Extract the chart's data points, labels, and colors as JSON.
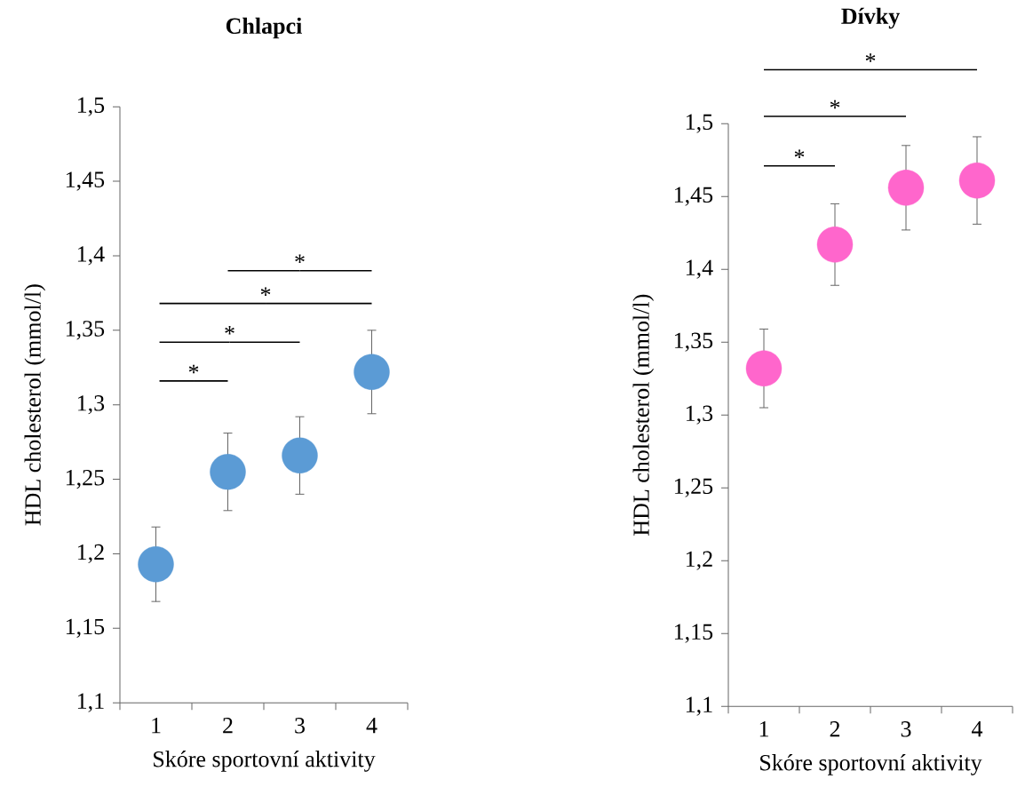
{
  "chart_data": [
    {
      "type": "scatter",
      "title": "Chlapci",
      "xlabel": "Skóre sportovní aktivity",
      "ylabel": "HDL cholesterol (mmol/l)",
      "categories": [
        "1",
        "2",
        "3",
        "4"
      ],
      "series": [
        {
          "color": "#5b9bd5",
          "values": [
            1.193,
            1.255,
            1.266,
            1.322
          ],
          "errors": [
            0.025,
            0.026,
            0.026,
            0.028
          ]
        }
      ],
      "ylim": [
        1.1,
        1.5
      ],
      "yticks": [
        {
          "value": 1.1,
          "label": "1,1"
        },
        {
          "value": 1.15,
          "label": "1,15"
        },
        {
          "value": 1.2,
          "label": "1,2"
        },
        {
          "value": 1.25,
          "label": "1,25"
        },
        {
          "value": 1.3,
          "label": "1,3"
        },
        {
          "value": 1.35,
          "label": "1,35"
        },
        {
          "value": 1.4,
          "label": "1,4"
        },
        {
          "value": 1.45,
          "label": "1,45"
        },
        {
          "value": 1.5,
          "label": "1,5"
        }
      ],
      "marker": "circle",
      "grid": false,
      "annotations": [
        "*",
        "*",
        "*",
        "*"
      ]
    },
    {
      "type": "scatter",
      "title": "Dívky",
      "xlabel": "Skóre sportovní aktivity",
      "ylabel": "HDL cholesterol (mmol/l)",
      "categories": [
        "1",
        "2",
        "3",
        "4"
      ],
      "series": [
        {
          "color": "#ff66cc",
          "values": [
            1.332,
            1.417,
            1.456,
            1.461
          ],
          "errors": [
            0.027,
            0.028,
            0.029,
            0.03
          ]
        }
      ],
      "ylim": [
        1.1,
        1.5
      ],
      "yticks": [
        {
          "value": 1.1,
          "label": "1,1"
        },
        {
          "value": 1.15,
          "label": "1,15"
        },
        {
          "value": 1.2,
          "label": "1,2"
        },
        {
          "value": 1.25,
          "label": "1,25"
        },
        {
          "value": 1.3,
          "label": "1,3"
        },
        {
          "value": 1.35,
          "label": "1,35"
        },
        {
          "value": 1.4,
          "label": "1,4"
        },
        {
          "value": 1.45,
          "label": "1,45"
        },
        {
          "value": 1.5,
          "label": "1,5"
        }
      ],
      "marker": "circle",
      "grid": false,
      "annotations": [
        "*",
        "*",
        "*"
      ]
    }
  ]
}
